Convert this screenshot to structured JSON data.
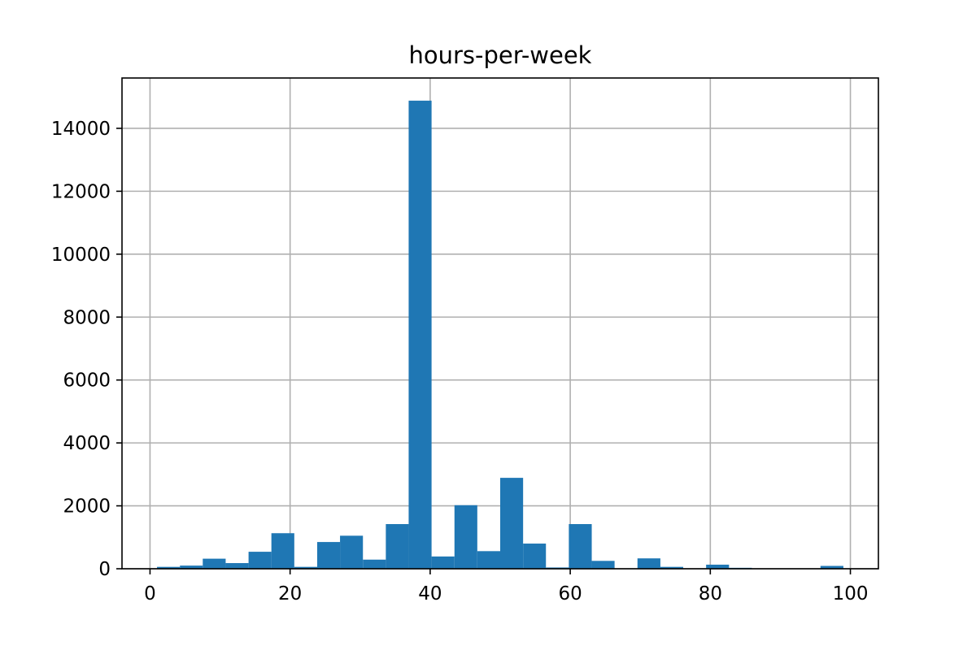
{
  "chart_data": {
    "type": "bar",
    "title": "hours-per-week",
    "xlabel": "",
    "ylabel": "",
    "xlim": [
      -4,
      104
    ],
    "ylim": [
      0,
      15600
    ],
    "x_ticks": [
      0,
      20,
      40,
      60,
      80,
      100
    ],
    "y_ticks": [
      0,
      2000,
      4000,
      6000,
      8000,
      10000,
      12000,
      14000
    ],
    "grid": true,
    "legend": "none",
    "bar_color": "#1f77b4",
    "bins": [
      {
        "start": 1.0,
        "end": 4.27,
        "count": 60
      },
      {
        "start": 4.27,
        "end": 7.53,
        "count": 100
      },
      {
        "start": 7.53,
        "end": 10.8,
        "count": 320
      },
      {
        "start": 10.8,
        "end": 14.07,
        "count": 180
      },
      {
        "start": 14.07,
        "end": 17.33,
        "count": 540
      },
      {
        "start": 17.33,
        "end": 20.6,
        "count": 1130
      },
      {
        "start": 20.6,
        "end": 23.87,
        "count": 60
      },
      {
        "start": 23.87,
        "end": 27.13,
        "count": 850
      },
      {
        "start": 27.13,
        "end": 30.4,
        "count": 1050
      },
      {
        "start": 30.4,
        "end": 33.67,
        "count": 290
      },
      {
        "start": 33.67,
        "end": 36.93,
        "count": 1420
      },
      {
        "start": 36.93,
        "end": 40.2,
        "count": 14880
      },
      {
        "start": 40.2,
        "end": 43.47,
        "count": 390
      },
      {
        "start": 43.47,
        "end": 46.73,
        "count": 2020
      },
      {
        "start": 46.73,
        "end": 50.0,
        "count": 560
      },
      {
        "start": 50.0,
        "end": 53.27,
        "count": 2890
      },
      {
        "start": 53.27,
        "end": 56.53,
        "count": 800
      },
      {
        "start": 56.53,
        "end": 59.8,
        "count": 40
      },
      {
        "start": 59.8,
        "end": 63.07,
        "count": 1420
      },
      {
        "start": 63.07,
        "end": 66.33,
        "count": 250
      },
      {
        "start": 66.33,
        "end": 69.6,
        "count": 0
      },
      {
        "start": 69.6,
        "end": 72.87,
        "count": 330
      },
      {
        "start": 72.87,
        "end": 76.13,
        "count": 60
      },
      {
        "start": 76.13,
        "end": 79.4,
        "count": 0
      },
      {
        "start": 79.4,
        "end": 82.67,
        "count": 130
      },
      {
        "start": 82.67,
        "end": 85.93,
        "count": 30
      },
      {
        "start": 85.93,
        "end": 89.2,
        "count": 0
      },
      {
        "start": 89.2,
        "end": 92.47,
        "count": 0
      },
      {
        "start": 92.47,
        "end": 95.73,
        "count": 0
      },
      {
        "start": 95.73,
        "end": 99.0,
        "count": 90
      }
    ]
  }
}
